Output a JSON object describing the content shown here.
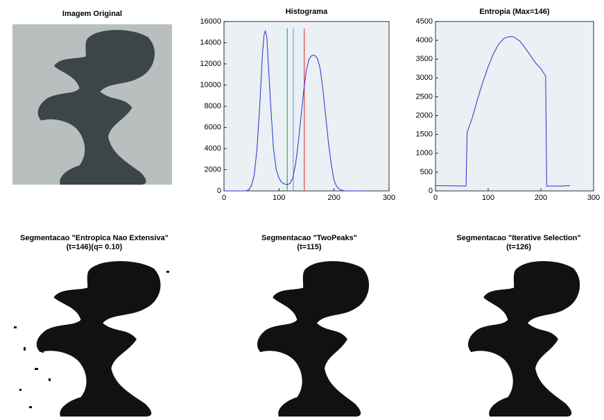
{
  "chart_data": [
    {
      "type": "line",
      "title": "Histograma",
      "x": [
        0,
        40,
        45,
        50,
        55,
        60,
        65,
        70,
        73,
        75,
        78,
        80,
        85,
        90,
        95,
        100,
        105,
        110,
        115,
        120,
        125,
        130,
        135,
        140,
        145,
        150,
        155,
        160,
        165,
        170,
        175,
        180,
        185,
        190,
        195,
        200,
        205,
        210,
        215,
        220,
        255
      ],
      "series": [
        {
          "color": "#2b2bd0",
          "values": [
            0,
            0,
            100,
            500,
            1500,
            4000,
            8000,
            13000,
            14800,
            15100,
            14500,
            12500,
            8000,
            4000,
            2000,
            1200,
            800,
            650,
            600,
            700,
            1200,
            2500,
            4500,
            7000,
            9500,
            11500,
            12500,
            12800,
            12800,
            12500,
            11500,
            9500,
            7000,
            4500,
            2500,
            1000,
            400,
            150,
            50,
            0,
            0
          ]
        }
      ],
      "vlines": [
        {
          "x": 115,
          "color": "#1a9a3a"
        },
        {
          "x": 126,
          "color": "#18b8e0"
        },
        {
          "x": 146,
          "color": "#e02020"
        }
      ],
      "xlim": [
        0,
        300
      ],
      "xticks": [
        0,
        100,
        200,
        300
      ],
      "ylim": [
        0,
        16000
      ],
      "yticks": [
        0,
        2000,
        4000,
        6000,
        8000,
        10000,
        12000,
        14000,
        16000
      ],
      "background": "#eaf0f4"
    },
    {
      "type": "line",
      "title": "Entropia (Max=146)",
      "x": [
        0,
        58,
        60,
        70,
        80,
        90,
        100,
        110,
        120,
        130,
        140,
        146,
        150,
        160,
        170,
        180,
        190,
        200,
        209,
        211,
        240,
        255
      ],
      "series": [
        {
          "color": "#2b2bd0",
          "values": [
            140,
            130,
            1550,
            1950,
            2450,
            2900,
            3300,
            3650,
            3900,
            4050,
            4100,
            4100,
            4080,
            3980,
            3800,
            3600,
            3400,
            3250,
            3050,
            130,
            130,
            140
          ]
        }
      ],
      "xlim": [
        0,
        300
      ],
      "xticks": [
        0,
        100,
        200,
        300
      ],
      "ylim": [
        0,
        4500
      ],
      "yticks": [
        0,
        500,
        1000,
        1500,
        2000,
        2500,
        3000,
        3500,
        4000,
        4500
      ],
      "background": "#eaf0f4"
    }
  ],
  "images": [
    {
      "title": "Imagem Original"
    },
    {
      "title": "Segmentacao \"Entropica Nao Extensiva\"",
      "subtitle": "(t=146)(q= 0.10)"
    },
    {
      "title": "Segmentacao \"TwoPeaks\"",
      "subtitle": "(t=115)"
    },
    {
      "title": "Segmentacao \"Iterative Selection\"",
      "subtitle": "(t=126)"
    }
  ]
}
